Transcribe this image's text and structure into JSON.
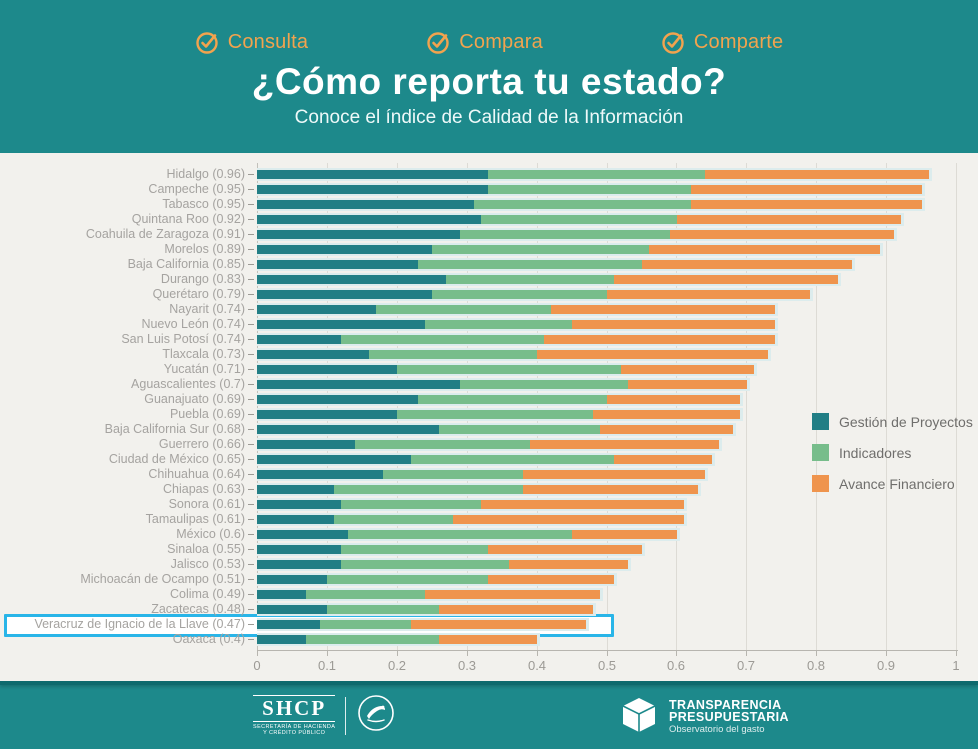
{
  "page": {
    "bg_color": "#1d898b",
    "card_color": "#f2f1ed",
    "accent_orange": "#f2a34e",
    "highlight_color": "#29b5e8"
  },
  "header": {
    "badges": [
      {
        "label": "Consulta"
      },
      {
        "label": "Compara"
      },
      {
        "label": "Comparte"
      }
    ],
    "title": "¿Cómo reporta tu estado?",
    "subtitle": "Conoce el índice de Calidad de la Información"
  },
  "chart_data": {
    "type": "bar",
    "orientation": "horizontal",
    "stacked": true,
    "grid": true,
    "legend_position": "right",
    "xlim": [
      0,
      1
    ],
    "x_ticks": [
      "0",
      "0.1",
      "0.2",
      "0.3",
      "0.4",
      "0.5",
      "0.6",
      "0.7",
      "0.8",
      "0.9",
      "1"
    ],
    "series": [
      {
        "name": "Gestión de Proyectos",
        "color": "#217e85"
      },
      {
        "name": "Indicadores",
        "color": "#77bd8b"
      },
      {
        "name": "Avance Financiero",
        "color": "#ef944d"
      }
    ],
    "rows": [
      {
        "label": "Hidalgo (0.96)",
        "total": 0.96,
        "values": [
          0.33,
          0.31,
          0.32
        ],
        "highlighted": false
      },
      {
        "label": "Campeche (0.95)",
        "total": 0.95,
        "values": [
          0.33,
          0.29,
          0.33
        ],
        "highlighted": false
      },
      {
        "label": "Tabasco (0.95)",
        "total": 0.95,
        "values": [
          0.31,
          0.31,
          0.33
        ],
        "highlighted": false
      },
      {
        "label": "Quintana Roo (0.92)",
        "total": 0.92,
        "values": [
          0.32,
          0.28,
          0.32
        ],
        "highlighted": false
      },
      {
        "label": "Coahuila de Zaragoza (0.91)",
        "total": 0.91,
        "values": [
          0.29,
          0.3,
          0.32
        ],
        "highlighted": false
      },
      {
        "label": "Morelos (0.89)",
        "total": 0.89,
        "values": [
          0.25,
          0.31,
          0.33
        ],
        "highlighted": false
      },
      {
        "label": "Baja California (0.85)",
        "total": 0.85,
        "values": [
          0.23,
          0.32,
          0.3
        ],
        "highlighted": false
      },
      {
        "label": "Durango (0.83)",
        "total": 0.83,
        "values": [
          0.27,
          0.24,
          0.32
        ],
        "highlighted": false
      },
      {
        "label": "Querétaro (0.79)",
        "total": 0.79,
        "values": [
          0.25,
          0.25,
          0.29
        ],
        "highlighted": false
      },
      {
        "label": "Nayarit (0.74)",
        "total": 0.74,
        "values": [
          0.17,
          0.25,
          0.32
        ],
        "highlighted": false
      },
      {
        "label": "Nuevo León (0.74)",
        "total": 0.74,
        "values": [
          0.24,
          0.21,
          0.29
        ],
        "highlighted": false
      },
      {
        "label": "San Luis Potosí (0.74)",
        "total": 0.74,
        "values": [
          0.12,
          0.29,
          0.33
        ],
        "highlighted": false
      },
      {
        "label": "Tlaxcala (0.73)",
        "total": 0.73,
        "values": [
          0.16,
          0.24,
          0.33
        ],
        "highlighted": false
      },
      {
        "label": "Yucatán (0.71)",
        "total": 0.71,
        "values": [
          0.2,
          0.32,
          0.19
        ],
        "highlighted": false
      },
      {
        "label": "Aguascalientes (0.7)",
        "total": 0.7,
        "values": [
          0.29,
          0.24,
          0.17
        ],
        "highlighted": false
      },
      {
        "label": "Guanajuato (0.69)",
        "total": 0.69,
        "values": [
          0.23,
          0.27,
          0.19
        ],
        "highlighted": false
      },
      {
        "label": "Puebla (0.69)",
        "total": 0.69,
        "values": [
          0.2,
          0.28,
          0.21
        ],
        "highlighted": false
      },
      {
        "label": "Baja California Sur (0.68)",
        "total": 0.68,
        "values": [
          0.26,
          0.23,
          0.19
        ],
        "highlighted": false
      },
      {
        "label": "Guerrero (0.66)",
        "total": 0.66,
        "values": [
          0.14,
          0.25,
          0.27
        ],
        "highlighted": false
      },
      {
        "label": "Ciudad de México (0.65)",
        "total": 0.65,
        "values": [
          0.22,
          0.29,
          0.14
        ],
        "highlighted": false
      },
      {
        "label": "Chihuahua (0.64)",
        "total": 0.64,
        "values": [
          0.18,
          0.2,
          0.26
        ],
        "highlighted": false
      },
      {
        "label": "Chiapas (0.63)",
        "total": 0.63,
        "values": [
          0.11,
          0.27,
          0.25
        ],
        "highlighted": false
      },
      {
        "label": "Sonora (0.61)",
        "total": 0.61,
        "values": [
          0.12,
          0.2,
          0.29
        ],
        "highlighted": false
      },
      {
        "label": "Tamaulipas (0.61)",
        "total": 0.61,
        "values": [
          0.11,
          0.17,
          0.33
        ],
        "highlighted": false
      },
      {
        "label": "México (0.6)",
        "total": 0.6,
        "values": [
          0.13,
          0.32,
          0.15
        ],
        "highlighted": false
      },
      {
        "label": "Sinaloa (0.55)",
        "total": 0.55,
        "values": [
          0.12,
          0.21,
          0.22
        ],
        "highlighted": false
      },
      {
        "label": "Jalisco (0.53)",
        "total": 0.53,
        "values": [
          0.12,
          0.24,
          0.17
        ],
        "highlighted": false
      },
      {
        "label": "Michoacán de Ocampo (0.51)",
        "total": 0.51,
        "values": [
          0.1,
          0.23,
          0.18
        ],
        "highlighted": false
      },
      {
        "label": "Colima (0.49)",
        "total": 0.49,
        "values": [
          0.07,
          0.17,
          0.25
        ],
        "highlighted": false
      },
      {
        "label": "Zacatecas (0.48)",
        "total": 0.48,
        "values": [
          0.1,
          0.16,
          0.22
        ],
        "highlighted": false
      },
      {
        "label": "Veracruz de Ignacio de la Llave (0.47)",
        "total": 0.47,
        "values": [
          0.09,
          0.13,
          0.25
        ],
        "highlighted": true
      },
      {
        "label": "Oaxaca (0.4)",
        "total": 0.4,
        "values": [
          0.07,
          0.19,
          0.14
        ],
        "highlighted": false
      }
    ]
  },
  "footer": {
    "shcp": {
      "acronym": "SHCP",
      "caption_line1": "SECRETARÍA DE HACIENDA",
      "caption_line2": "Y CRÉDITO PÚBLICO"
    },
    "transparencia": {
      "line1": "TRANSPARENCIA",
      "line2": "PRESUPUESTARIA",
      "line3": "Observatorio del gasto"
    }
  }
}
